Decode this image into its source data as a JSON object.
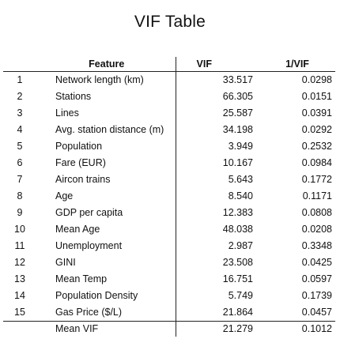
{
  "title": "VIF Table",
  "columns": {
    "feature": "Feature",
    "vif": "VIF",
    "inv_vif": "1/VIF"
  },
  "rows": [
    {
      "idx": "1",
      "feature": "Network length (km)",
      "vif": "33.517",
      "inv": "0.0298"
    },
    {
      "idx": "2",
      "feature": "Stations",
      "vif": "66.305",
      "inv": "0.0151"
    },
    {
      "idx": "3",
      "feature": "Lines",
      "vif": "25.587",
      "inv": "0.0391"
    },
    {
      "idx": "4",
      "feature": "Avg. station distance (m)",
      "vif": "34.198",
      "inv": "0.0292"
    },
    {
      "idx": "5",
      "feature": "Population",
      "vif": "3.949",
      "inv": "0.2532"
    },
    {
      "idx": "6",
      "feature": "Fare (EUR)",
      "vif": "10.167",
      "inv": "0.0984"
    },
    {
      "idx": "7",
      "feature": "Aircon trains",
      "vif": "5.643",
      "inv": "0.1772"
    },
    {
      "idx": "8",
      "feature": "Age",
      "vif": "8.540",
      "inv": "0.1171"
    },
    {
      "idx": "9",
      "feature": "GDP per capita",
      "vif": "12.383",
      "inv": "0.0808"
    },
    {
      "idx": "10",
      "feature": "Mean Age",
      "vif": "48.038",
      "inv": "0.0208"
    },
    {
      "idx": "11",
      "feature": "Unemployment",
      "vif": "2.987",
      "inv": "0.3348"
    },
    {
      "idx": "12",
      "feature": "GINI",
      "vif": "23.508",
      "inv": "0.0425"
    },
    {
      "idx": "13",
      "feature": "Mean Temp",
      "vif": "16.751",
      "inv": "0.0597"
    },
    {
      "idx": "14",
      "feature": "Population Density",
      "vif": "5.749",
      "inv": "0.1739"
    },
    {
      "idx": "15",
      "feature": "Gas Price ($/L)",
      "vif": "21.864",
      "inv": "0.0457"
    }
  ],
  "summary": {
    "label": "Mean VIF",
    "vif": "21.279",
    "inv": "0.1012"
  }
}
